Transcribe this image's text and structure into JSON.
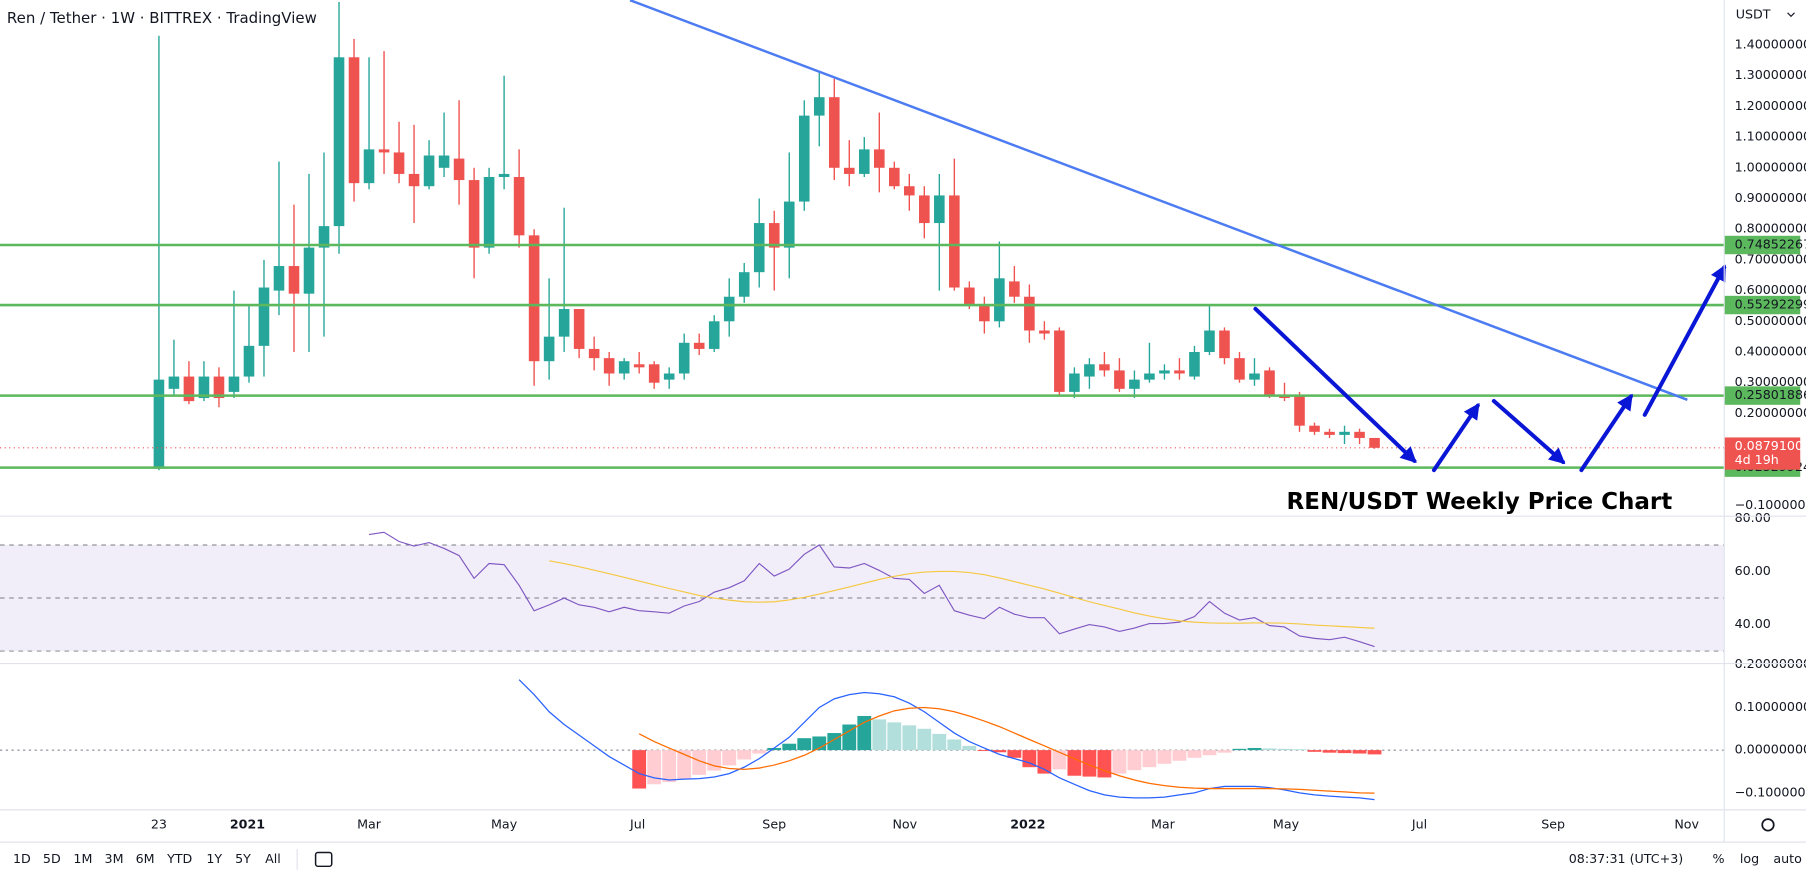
{
  "header": {
    "title": "Ren / Tether · 1W · BITTREX · TradingView",
    "currency": "USDT"
  },
  "annotation": "REN/USDT Weekly Price Chart",
  "toolbar": {
    "ranges": [
      "1D",
      "5D",
      "1M",
      "3M",
      "6M",
      "YTD",
      "1Y",
      "5Y",
      "All"
    ],
    "clock": "08:37:31 (UTC+3)",
    "percent": "%",
    "log": "log",
    "auto": "auto"
  },
  "chart_data": [
    {
      "type": "candlestick",
      "up_color": "#26a69a",
      "down_color": "#ef5350",
      "xlim": [
        -10.59,
        104.3
      ],
      "xticks": [
        {
          "value": 0,
          "label": "23"
        },
        {
          "value": 5.9,
          "label": "2021"
        },
        {
          "value": 14.0,
          "label": "Mar"
        },
        {
          "value": 23.0,
          "label": "May"
        },
        {
          "value": 31.9,
          "label": "Jul"
        },
        {
          "value": 41.0,
          "label": "Sep"
        },
        {
          "value": 49.7,
          "label": "Nov"
        },
        {
          "value": 57.9,
          "label": "2022"
        },
        {
          "value": 66.9,
          "label": "Mar"
        },
        {
          "value": 75.1,
          "label": "May"
        },
        {
          "value": 84.0,
          "label": "Jul"
        },
        {
          "value": 92.9,
          "label": "Sep"
        },
        {
          "value": 101.8,
          "label": "Nov"
        }
      ],
      "ylim": [
        -0.131,
        1.546
      ],
      "yticks": [
        {
          "value": 1.4,
          "label": "1.40000000"
        },
        {
          "value": 1.3,
          "label": "1.30000000"
        },
        {
          "value": 1.2,
          "label": "1.20000000"
        },
        {
          "value": 1.1,
          "label": "1.10000000"
        },
        {
          "value": 1.0,
          "label": "1.00000000"
        },
        {
          "value": 0.9,
          "label": "0.90000000"
        },
        {
          "value": 0.8,
          "label": "0.80000000"
        },
        {
          "value": 0.7,
          "label": "0.70000000"
        },
        {
          "value": 0.6,
          "label": "0.60000000"
        },
        {
          "value": 0.5,
          "label": "0.50000000"
        },
        {
          "value": 0.4,
          "label": "0.40000000"
        },
        {
          "value": 0.3,
          "label": "0.30000000"
        },
        {
          "value": 0.2,
          "label": "0.20000000"
        },
        {
          "value": -0.1,
          "label": "−0.10000000"
        }
      ],
      "levels": [
        0.74852267,
        0.55292299,
        0.25801886,
        0.02329924
      ],
      "level_color": "#5cb85c",
      "last_price": {
        "value": 0.08791,
        "label": "0.08791000"
      },
      "countdown": "4d 19h",
      "open": [
        0.02,
        0.28,
        0.32,
        0.25,
        0.32,
        0.27,
        0.32,
        0.42,
        0.6,
        0.68,
        0.59,
        0.74,
        0.81,
        1.36,
        0.95,
        1.06,
        1.05,
        0.98,
        0.94,
        1.0,
        1.03,
        0.96,
        0.74,
        0.97,
        0.97,
        0.78,
        0.37,
        0.45,
        0.54,
        0.41,
        0.38,
        0.33,
        0.36,
        0.36,
        0.31,
        0.33,
        0.43,
        0.41,
        0.5,
        0.58,
        0.66,
        0.82,
        0.74,
        0.89,
        1.17,
        1.23,
        1.0,
        0.98,
        1.06,
        1.0,
        0.94,
        0.91,
        0.82,
        0.91,
        0.61,
        0.55,
        0.5,
        0.63,
        0.58,
        0.47,
        0.47,
        0.27,
        0.32,
        0.36,
        0.34,
        0.28,
        0.31,
        0.33,
        0.34,
        0.32,
        0.4,
        0.47,
        0.38,
        0.31,
        0.34,
        0.26,
        0.26,
        0.16,
        0.14,
        0.13,
        0.14,
        0.12
      ],
      "high": [
        1.43,
        0.44,
        0.37,
        0.37,
        0.35,
        0.6,
        0.55,
        0.7,
        1.02,
        0.88,
        0.98,
        1.05,
        1.54,
        1.42,
        1.36,
        1.38,
        1.15,
        1.14,
        1.09,
        1.18,
        1.22,
        1.0,
        1.0,
        1.3,
        1.06,
        0.8,
        0.64,
        0.87,
        0.54,
        0.45,
        0.4,
        0.38,
        0.4,
        0.37,
        0.35,
        0.46,
        0.46,
        0.52,
        0.64,
        0.69,
        0.9,
        0.86,
        1.05,
        1.22,
        1.31,
        1.29,
        1.09,
        1.1,
        1.18,
        1.02,
        0.98,
        0.94,
        0.98,
        1.03,
        0.63,
        0.58,
        0.76,
        0.68,
        0.62,
        0.5,
        0.48,
        0.35,
        0.38,
        0.4,
        0.38,
        0.34,
        0.43,
        0.36,
        0.38,
        0.42,
        0.55,
        0.48,
        0.4,
        0.38,
        0.35,
        0.3,
        0.27,
        0.17,
        0.15,
        0.16,
        0.15,
        0.12
      ],
      "low": [
        0.015,
        0.26,
        0.23,
        0.24,
        0.22,
        0.25,
        0.3,
        0.32,
        0.52,
        0.4,
        0.4,
        0.45,
        0.72,
        0.89,
        0.93,
        0.98,
        0.95,
        0.82,
        0.93,
        0.97,
        0.88,
        0.64,
        0.72,
        0.93,
        0.74,
        0.29,
        0.31,
        0.4,
        0.38,
        0.34,
        0.29,
        0.31,
        0.33,
        0.28,
        0.28,
        0.31,
        0.39,
        0.4,
        0.45,
        0.56,
        0.61,
        0.6,
        0.64,
        0.86,
        1.07,
        0.96,
        0.94,
        0.97,
        0.92,
        0.93,
        0.86,
        0.77,
        0.6,
        0.6,
        0.54,
        0.46,
        0.48,
        0.56,
        0.43,
        0.44,
        0.26,
        0.25,
        0.28,
        0.32,
        0.27,
        0.25,
        0.3,
        0.31,
        0.31,
        0.31,
        0.39,
        0.36,
        0.3,
        0.29,
        0.25,
        0.24,
        0.14,
        0.13,
        0.12,
        0.1,
        0.1,
        0.085
      ],
      "close": [
        0.31,
        0.32,
        0.24,
        0.32,
        0.25,
        0.32,
        0.42,
        0.61,
        0.68,
        0.59,
        0.74,
        0.81,
        1.36,
        0.95,
        1.06,
        1.05,
        0.98,
        0.94,
        1.04,
        1.04,
        0.96,
        0.74,
        0.97,
        0.98,
        0.78,
        0.37,
        0.45,
        0.54,
        0.41,
        0.38,
        0.33,
        0.37,
        0.35,
        0.3,
        0.33,
        0.43,
        0.41,
        0.5,
        0.58,
        0.66,
        0.82,
        0.74,
        0.89,
        1.17,
        1.23,
        1.0,
        0.98,
        1.06,
        1.0,
        0.94,
        0.91,
        0.82,
        0.91,
        0.61,
        0.55,
        0.5,
        0.64,
        0.58,
        0.47,
        0.46,
        0.27,
        0.33,
        0.36,
        0.34,
        0.28,
        0.31,
        0.33,
        0.34,
        0.33,
        0.4,
        0.47,
        0.38,
        0.31,
        0.33,
        0.26,
        0.25,
        0.16,
        0.14,
        0.13,
        0.14,
        0.12,
        0.08791
      ]
    },
    {
      "type": "line",
      "ylim": [
        25.7,
        80
      ],
      "yticks": [
        {
          "value": 80,
          "label": "80.00"
        },
        {
          "value": 60,
          "label": "60.00"
        },
        {
          "value": 40,
          "label": "40.00"
        }
      ],
      "band": [
        30,
        70
      ],
      "midline": 50,
      "band_color": "rgba(126,87,194,0.1)",
      "series": [
        {
          "color": "#7e57c2",
          "values": [
            null,
            null,
            null,
            null,
            null,
            null,
            null,
            null,
            null,
            null,
            null,
            null,
            null,
            null,
            73.9,
            74.8,
            71.3,
            69.6,
            70.9,
            68.7,
            66,
            57.4,
            63,
            62.6,
            54.8,
            45.2,
            47.4,
            50,
            47.4,
            46.5,
            44.8,
            46.5,
            45.2,
            44.8,
            44.3,
            47,
            48.7,
            52.2,
            53.9,
            56.5,
            63,
            58.3,
            60.9,
            66.5,
            70,
            61.7,
            61.3,
            63,
            60.4,
            57.4,
            57,
            51.7,
            54.8,
            45.2,
            43.5,
            42.2,
            46.5,
            43.9,
            42.6,
            42.6,
            36.5,
            38.3,
            40,
            39.1,
            37.4,
            38.7,
            40.4,
            40.4,
            40.9,
            43,
            48.7,
            44.3,
            41.7,
            42.6,
            39.6,
            39.1,
            35.7,
            34.8,
            34.3,
            35.2,
            33.5,
            31.7
          ]
        },
        {
          "color": "#f5c842",
          "values": [
            null,
            null,
            null,
            null,
            null,
            null,
            null,
            null,
            null,
            null,
            null,
            null,
            null,
            null,
            null,
            null,
            null,
            null,
            null,
            null,
            null,
            null,
            null,
            null,
            null,
            null,
            64,
            63,
            61.8,
            60.5,
            59.2,
            57.8,
            56.4,
            55,
            53.6,
            52.3,
            51,
            50,
            49.2,
            48.6,
            48.4,
            48.6,
            49.3,
            50.3,
            51.5,
            52.8,
            54.2,
            55.6,
            57,
            58.2,
            59.2,
            59.8,
            60,
            60,
            59.6,
            58.8,
            57.6,
            56.2,
            54.8,
            53.4,
            51.8,
            50.2,
            48.6,
            47.2,
            45.8,
            44.4,
            43.2,
            42.2,
            41.4,
            40.9,
            40.6,
            40.5,
            40.5,
            40.6,
            40.6,
            40.5,
            40.2,
            39.8,
            39.5,
            39.2,
            38.9,
            38.6
          ]
        }
      ]
    },
    {
      "type": "macd",
      "ylim": [
        -0.14,
        0.2
      ],
      "yticks": [
        {
          "value": 0.2,
          "label": "0.20000000"
        },
        {
          "value": 0.1,
          "label": "0.10000000"
        },
        {
          "value": 0,
          "label": "0.00000000"
        },
        {
          "value": -0.1,
          "label": "−0.10000000"
        }
      ],
      "hist_colors": [
        "#26a69a",
        "#b2dfdb",
        "#ffcdd2",
        "#ff5252"
      ],
      "histogram": [
        null,
        null,
        null,
        null,
        null,
        null,
        null,
        null,
        null,
        null,
        null,
        null,
        null,
        null,
        null,
        null,
        null,
        null,
        null,
        null,
        null,
        null,
        null,
        null,
        null,
        null,
        null,
        null,
        null,
        null,
        null,
        null,
        -0.09,
        -0.08,
        -0.075,
        -0.068,
        -0.058,
        -0.048,
        -0.036,
        -0.022,
        -0.008,
        0.005,
        0.015,
        0.028,
        0.032,
        0.04,
        0.06,
        0.08,
        0.072,
        0.065,
        0.058,
        0.05,
        0.038,
        0.025,
        0.01,
        -0.002,
        -0.005,
        -0.018,
        -0.04,
        -0.055,
        -0.045,
        -0.06,
        -0.062,
        -0.064,
        -0.055,
        -0.047,
        -0.04,
        -0.032,
        -0.025,
        -0.018,
        -0.012,
        -0.006,
        0.003,
        0.005,
        0.004,
        0.003,
        0.002,
        -0.004,
        -0.006,
        -0.007,
        -0.008,
        -0.01
      ],
      "series": [
        {
          "color": "#2962ff",
          "values": [
            null,
            null,
            null,
            null,
            null,
            null,
            null,
            null,
            null,
            null,
            null,
            null,
            null,
            null,
            null,
            null,
            null,
            null,
            null,
            null,
            null,
            null,
            null,
            null,
            0.165,
            0.13,
            0.09,
            0.06,
            0.035,
            0.01,
            -0.015,
            -0.035,
            -0.055,
            -0.065,
            -0.07,
            -0.068,
            -0.067,
            -0.063,
            -0.055,
            -0.04,
            -0.02,
            0.005,
            0.03,
            0.065,
            0.1,
            0.12,
            0.13,
            0.135,
            0.132,
            0.125,
            0.11,
            0.09,
            0.065,
            0.04,
            0.02,
            0.005,
            -0.01,
            -0.02,
            -0.03,
            -0.045,
            -0.065,
            -0.08,
            -0.095,
            -0.105,
            -0.11,
            -0.112,
            -0.112,
            -0.11,
            -0.105,
            -0.1,
            -0.09,
            -0.085,
            -0.085,
            -0.085,
            -0.088,
            -0.093,
            -0.1,
            -0.105,
            -0.108,
            -0.11,
            -0.112,
            -0.116
          ]
        },
        {
          "color": "#ff6d00",
          "values": [
            null,
            null,
            null,
            null,
            null,
            null,
            null,
            null,
            null,
            null,
            null,
            null,
            null,
            null,
            null,
            null,
            null,
            null,
            null,
            null,
            null,
            null,
            null,
            null,
            null,
            null,
            null,
            null,
            null,
            null,
            null,
            null,
            0.038,
            0.02,
            0.005,
            -0.01,
            -0.025,
            -0.037,
            -0.043,
            -0.045,
            -0.042,
            -0.035,
            -0.025,
            -0.012,
            0.005,
            0.025,
            0.045,
            0.065,
            0.08,
            0.092,
            0.098,
            0.1,
            0.097,
            0.09,
            0.08,
            0.068,
            0.055,
            0.04,
            0.025,
            0.01,
            -0.005,
            -0.02,
            -0.035,
            -0.048,
            -0.06,
            -0.07,
            -0.078,
            -0.083,
            -0.087,
            -0.089,
            -0.09,
            -0.09,
            -0.09,
            -0.09,
            -0.09,
            -0.091,
            -0.092,
            -0.094,
            -0.096,
            -0.098,
            -0.1,
            -0.101
          ]
        }
      ]
    }
  ]
}
